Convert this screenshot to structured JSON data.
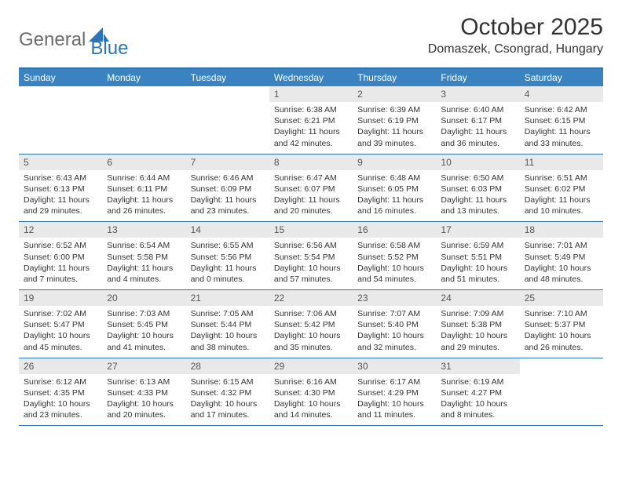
{
  "logo": {
    "general": "General",
    "blue": "Blue"
  },
  "title": "October 2025",
  "location": "Domaszek, Csongrad, Hungary",
  "colors": {
    "header_bar": "#3b83c0",
    "rule": "#2e74b5",
    "daynum_bg": "#e9e9e9",
    "text": "#333333",
    "logo_gray": "#6b6b6b",
    "logo_blue": "#2e74b5",
    "white": "#ffffff"
  },
  "dayNames": [
    "Sunday",
    "Monday",
    "Tuesday",
    "Wednesday",
    "Thursday",
    "Friday",
    "Saturday"
  ],
  "weeks": [
    [
      {
        "n": "",
        "empty": true
      },
      {
        "n": "",
        "empty": true
      },
      {
        "n": "",
        "empty": true
      },
      {
        "n": "1",
        "sr": "Sunrise: 6:38 AM",
        "ss": "Sunset: 6:21 PM",
        "dl": "Daylight: 11 hours and 42 minutes."
      },
      {
        "n": "2",
        "sr": "Sunrise: 6:39 AM",
        "ss": "Sunset: 6:19 PM",
        "dl": "Daylight: 11 hours and 39 minutes."
      },
      {
        "n": "3",
        "sr": "Sunrise: 6:40 AM",
        "ss": "Sunset: 6:17 PM",
        "dl": "Daylight: 11 hours and 36 minutes."
      },
      {
        "n": "4",
        "sr": "Sunrise: 6:42 AM",
        "ss": "Sunset: 6:15 PM",
        "dl": "Daylight: 11 hours and 33 minutes."
      }
    ],
    [
      {
        "n": "5",
        "sr": "Sunrise: 6:43 AM",
        "ss": "Sunset: 6:13 PM",
        "dl": "Daylight: 11 hours and 29 minutes."
      },
      {
        "n": "6",
        "sr": "Sunrise: 6:44 AM",
        "ss": "Sunset: 6:11 PM",
        "dl": "Daylight: 11 hours and 26 minutes."
      },
      {
        "n": "7",
        "sr": "Sunrise: 6:46 AM",
        "ss": "Sunset: 6:09 PM",
        "dl": "Daylight: 11 hours and 23 minutes."
      },
      {
        "n": "8",
        "sr": "Sunrise: 6:47 AM",
        "ss": "Sunset: 6:07 PM",
        "dl": "Daylight: 11 hours and 20 minutes."
      },
      {
        "n": "9",
        "sr": "Sunrise: 6:48 AM",
        "ss": "Sunset: 6:05 PM",
        "dl": "Daylight: 11 hours and 16 minutes."
      },
      {
        "n": "10",
        "sr": "Sunrise: 6:50 AM",
        "ss": "Sunset: 6:03 PM",
        "dl": "Daylight: 11 hours and 13 minutes."
      },
      {
        "n": "11",
        "sr": "Sunrise: 6:51 AM",
        "ss": "Sunset: 6:02 PM",
        "dl": "Daylight: 11 hours and 10 minutes."
      }
    ],
    [
      {
        "n": "12",
        "sr": "Sunrise: 6:52 AM",
        "ss": "Sunset: 6:00 PM",
        "dl": "Daylight: 11 hours and 7 minutes."
      },
      {
        "n": "13",
        "sr": "Sunrise: 6:54 AM",
        "ss": "Sunset: 5:58 PM",
        "dl": "Daylight: 11 hours and 4 minutes."
      },
      {
        "n": "14",
        "sr": "Sunrise: 6:55 AM",
        "ss": "Sunset: 5:56 PM",
        "dl": "Daylight: 11 hours and 0 minutes."
      },
      {
        "n": "15",
        "sr": "Sunrise: 6:56 AM",
        "ss": "Sunset: 5:54 PM",
        "dl": "Daylight: 10 hours and 57 minutes."
      },
      {
        "n": "16",
        "sr": "Sunrise: 6:58 AM",
        "ss": "Sunset: 5:52 PM",
        "dl": "Daylight: 10 hours and 54 minutes."
      },
      {
        "n": "17",
        "sr": "Sunrise: 6:59 AM",
        "ss": "Sunset: 5:51 PM",
        "dl": "Daylight: 10 hours and 51 minutes."
      },
      {
        "n": "18",
        "sr": "Sunrise: 7:01 AM",
        "ss": "Sunset: 5:49 PM",
        "dl": "Daylight: 10 hours and 48 minutes."
      }
    ],
    [
      {
        "n": "19",
        "sr": "Sunrise: 7:02 AM",
        "ss": "Sunset: 5:47 PM",
        "dl": "Daylight: 10 hours and 45 minutes."
      },
      {
        "n": "20",
        "sr": "Sunrise: 7:03 AM",
        "ss": "Sunset: 5:45 PM",
        "dl": "Daylight: 10 hours and 41 minutes."
      },
      {
        "n": "21",
        "sr": "Sunrise: 7:05 AM",
        "ss": "Sunset: 5:44 PM",
        "dl": "Daylight: 10 hours and 38 minutes."
      },
      {
        "n": "22",
        "sr": "Sunrise: 7:06 AM",
        "ss": "Sunset: 5:42 PM",
        "dl": "Daylight: 10 hours and 35 minutes."
      },
      {
        "n": "23",
        "sr": "Sunrise: 7:07 AM",
        "ss": "Sunset: 5:40 PM",
        "dl": "Daylight: 10 hours and 32 minutes."
      },
      {
        "n": "24",
        "sr": "Sunrise: 7:09 AM",
        "ss": "Sunset: 5:38 PM",
        "dl": "Daylight: 10 hours and 29 minutes."
      },
      {
        "n": "25",
        "sr": "Sunrise: 7:10 AM",
        "ss": "Sunset: 5:37 PM",
        "dl": "Daylight: 10 hours and 26 minutes."
      }
    ],
    [
      {
        "n": "26",
        "sr": "Sunrise: 6:12 AM",
        "ss": "Sunset: 4:35 PM",
        "dl": "Daylight: 10 hours and 23 minutes."
      },
      {
        "n": "27",
        "sr": "Sunrise: 6:13 AM",
        "ss": "Sunset: 4:33 PM",
        "dl": "Daylight: 10 hours and 20 minutes."
      },
      {
        "n": "28",
        "sr": "Sunrise: 6:15 AM",
        "ss": "Sunset: 4:32 PM",
        "dl": "Daylight: 10 hours and 17 minutes."
      },
      {
        "n": "29",
        "sr": "Sunrise: 6:16 AM",
        "ss": "Sunset: 4:30 PM",
        "dl": "Daylight: 10 hours and 14 minutes."
      },
      {
        "n": "30",
        "sr": "Sunrise: 6:17 AM",
        "ss": "Sunset: 4:29 PM",
        "dl": "Daylight: 10 hours and 11 minutes."
      },
      {
        "n": "31",
        "sr": "Sunrise: 6:19 AM",
        "ss": "Sunset: 4:27 PM",
        "dl": "Daylight: 10 hours and 8 minutes."
      },
      {
        "n": "",
        "empty": true
      }
    ]
  ]
}
